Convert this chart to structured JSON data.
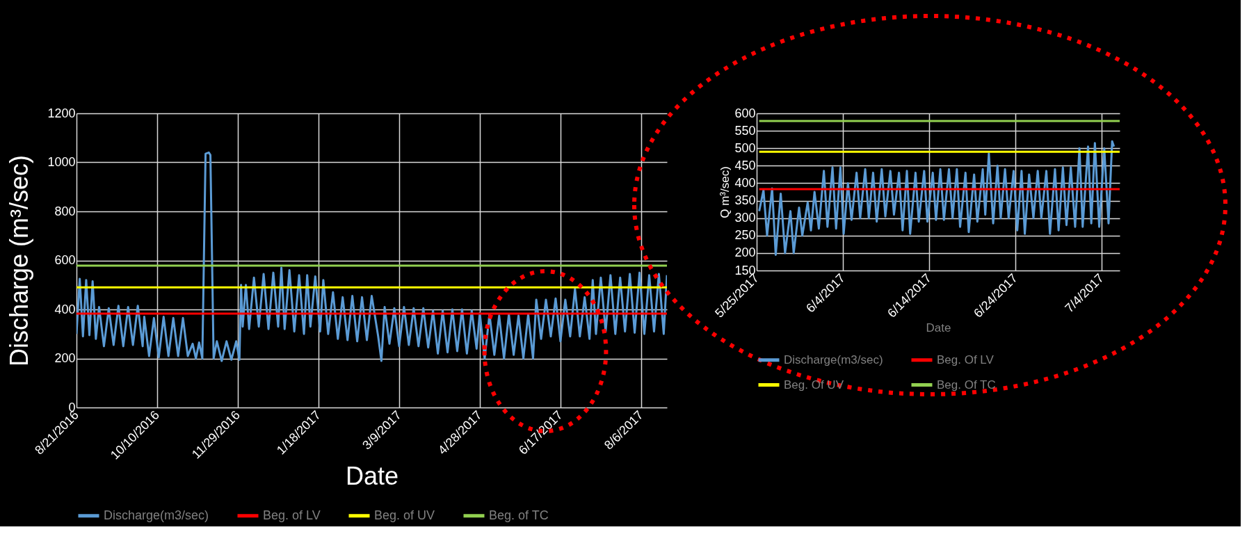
{
  "chart_data": [
    {
      "type": "line",
      "xlabel": "Date",
      "ylabel": "Discharge (m³/sec)",
      "xlim": [
        "2016-08-21",
        "2017-08-22"
      ],
      "xticks": [
        {
          "value": "2016-08-21",
          "label": "8/21/2016"
        },
        {
          "value": "2016-10-10",
          "label": "10/10/2016"
        },
        {
          "value": "2016-11-29",
          "label": "11/29/2016"
        },
        {
          "value": "2017-01-18",
          "label": "1/18/2017"
        },
        {
          "value": "2017-03-09",
          "label": "3/9/2017"
        },
        {
          "value": "2017-04-28",
          "label": "4/28/2017"
        },
        {
          "value": "2017-06-17",
          "label": "6/17/2017"
        },
        {
          "value": "2017-08-06",
          "label": "8/6/2017"
        }
      ],
      "ylim": [
        0,
        1200
      ],
      "yticks": [
        0,
        200,
        400,
        600,
        800,
        1000,
        1200
      ],
      "grid": true,
      "legend": "bottom",
      "series": [
        {
          "name": "Discharge(m3/sec)",
          "color": "#5b9bd5",
          "x": [
            "2016-08-21",
            "2016-08-23",
            "2016-08-25",
            "2016-08-27",
            "2016-08-29",
            "2016-08-31",
            "2016-09-02",
            "2016-09-04",
            "2016-09-07",
            "2016-09-10",
            "2016-09-13",
            "2016-09-16",
            "2016-09-19",
            "2016-09-22",
            "2016-09-25",
            "2016-09-28",
            "2016-10-01",
            "2016-10-02",
            "2016-10-05",
            "2016-10-08",
            "2016-10-11",
            "2016-10-14",
            "2016-10-17",
            "2016-10-20",
            "2016-10-23",
            "2016-10-26",
            "2016-10-29",
            "2016-11-01",
            "2016-11-03",
            "2016-11-05",
            "2016-11-07",
            "2016-11-09",
            "2016-11-11",
            "2016-11-12",
            "2016-11-14",
            "2016-11-16",
            "2016-11-19",
            "2016-11-22",
            "2016-11-25",
            "2016-11-28",
            "2016-11-30",
            "2016-12-01",
            "2016-12-02",
            "2016-12-04",
            "2016-12-06",
            "2016-12-09",
            "2016-12-12",
            "2016-12-15",
            "2016-12-18",
            "2016-12-21",
            "2016-12-24",
            "2016-12-26",
            "2016-12-28",
            "2016-12-31",
            "2017-01-03",
            "2017-01-06",
            "2017-01-09",
            "2017-01-11",
            "2017-01-13",
            "2017-01-16",
            "2017-01-19",
            "2017-01-21",
            "2017-01-24",
            "2017-01-27",
            "2017-01-30",
            "2017-02-02",
            "2017-02-05",
            "2017-02-08",
            "2017-02-11",
            "2017-02-14",
            "2017-02-17",
            "2017-02-20",
            "2017-02-24",
            "2017-02-26",
            "2017-02-28",
            "2017-03-03",
            "2017-03-06",
            "2017-03-09",
            "2017-03-12",
            "2017-03-15",
            "2017-03-18",
            "2017-03-21",
            "2017-03-24",
            "2017-03-27",
            "2017-03-30",
            "2017-04-02",
            "2017-04-05",
            "2017-04-08",
            "2017-04-11",
            "2017-04-14",
            "2017-04-17",
            "2017-04-20",
            "2017-04-23",
            "2017-04-26",
            "2017-04-28",
            "2017-05-01",
            "2017-05-04",
            "2017-05-07",
            "2017-05-10",
            "2017-05-13",
            "2017-05-16",
            "2017-05-19",
            "2017-05-22",
            "2017-05-25",
            "2017-05-28",
            "2017-05-31",
            "2017-06-02",
            "2017-06-05",
            "2017-06-08",
            "2017-06-11",
            "2017-06-14",
            "2017-06-17",
            "2017-06-20",
            "2017-06-23",
            "2017-06-26",
            "2017-06-29",
            "2017-07-02",
            "2017-07-05",
            "2017-07-07",
            "2017-07-09",
            "2017-07-12",
            "2017-07-15",
            "2017-07-18",
            "2017-07-21",
            "2017-07-24",
            "2017-07-27",
            "2017-07-30",
            "2017-08-02",
            "2017-08-05",
            "2017-08-08",
            "2017-08-11",
            "2017-08-14",
            "2017-08-17",
            "2017-08-20",
            "2017-08-22"
          ],
          "values": [
            300,
            525,
            290,
            520,
            295,
            515,
            280,
            410,
            250,
            405,
            255,
            415,
            250,
            410,
            255,
            415,
            250,
            370,
            210,
            365,
            205,
            370,
            210,
            365,
            210,
            365,
            210,
            260,
            200,
            265,
            200,
            1035,
            1040,
            1030,
            200,
            270,
            190,
            270,
            195,
            270,
            195,
            500,
            330,
            500,
            320,
            530,
            330,
            545,
            320,
            550,
            330,
            570,
            320,
            560,
            310,
            540,
            300,
            540,
            330,
            535,
            310,
            520,
            300,
            470,
            280,
            450,
            275,
            455,
            270,
            450,
            275,
            455,
            290,
            190,
            410,
            260,
            405,
            250,
            410,
            255,
            405,
            250,
            405,
            245,
            395,
            220,
            395,
            225,
            400,
            230,
            400,
            220,
            395,
            240,
            385,
            200,
            380,
            215,
            375,
            200,
            380,
            215,
            375,
            200,
            380,
            200,
            440,
            280,
            440,
            290,
            445,
            270,
            440,
            290,
            485,
            290,
            450,
            280,
            520,
            300,
            530,
            310,
            540,
            300,
            530,
            310,
            545,
            305,
            550,
            300,
            540,
            310,
            545,
            300,
            540
          ]
        },
        {
          "name": "Beg. of LV",
          "color": "#ff0000",
          "x": [
            "2016-08-21",
            "2017-08-22"
          ],
          "values": [
            383,
            383
          ]
        },
        {
          "name": "Beg. of UV",
          "color": "#ffff00",
          "x": [
            "2016-08-21",
            "2017-08-22"
          ],
          "values": [
            490,
            490
          ]
        },
        {
          "name": "Beg. of TC",
          "color": "#92d050",
          "x": [
            "2016-08-21",
            "2017-08-22"
          ],
          "values": [
            579,
            579
          ]
        }
      ]
    },
    {
      "type": "line",
      "xlabel": "Date",
      "ylabel": "Q m³/sec)",
      "xlim": [
        "2017-05-25",
        "2017-07-06T02:00"
      ],
      "xticks": [
        {
          "value": "2017-05-25",
          "label": "5/25/2017"
        },
        {
          "value": "2017-06-04",
          "label": "6/4/2017"
        },
        {
          "value": "2017-06-14",
          "label": "6/14/2017"
        },
        {
          "value": "2017-06-24",
          "label": "6/24/2017"
        },
        {
          "value": "2017-07-04",
          "label": "7/4/2017"
        }
      ],
      "ylim": [
        150,
        600
      ],
      "yticks": [
        150,
        200,
        250,
        300,
        350,
        400,
        450,
        500,
        550,
        600
      ],
      "grid": true,
      "legend": "bottom",
      "series": [
        {
          "name": "Discharge(m3/sec)",
          "color": "#5b9bd5",
          "x": [
            "2017-05-25T07:00",
            "2017-05-25T19:00",
            "2017-05-26T05:00",
            "2017-05-26T19:00",
            "2017-05-27T05:00",
            "2017-05-27T19:00",
            "2017-05-28T07:00",
            "2017-05-28T22:00",
            "2017-05-29T07:00",
            "2017-05-29T22:00",
            "2017-05-30T07:00",
            "2017-05-30T22:00",
            "2017-05-31T07:00",
            "2017-05-31T17:00",
            "2017-06-01T05:00",
            "2017-06-01T19:00",
            "2017-06-02T05:00",
            "2017-06-02T19:00",
            "2017-06-03T05:00",
            "2017-06-03T17:00",
            "2017-06-04T02:00",
            "2017-06-04T14:00",
            "2017-06-05T00:00",
            "2017-06-05T14:00",
            "2017-06-06T00:00",
            "2017-06-06T14:00",
            "2017-06-07T00:00",
            "2017-06-07T12:00",
            "2017-06-07T22:00",
            "2017-06-08T12:00",
            "2017-06-08T22:00",
            "2017-06-09T12:00",
            "2017-06-09T22:00",
            "2017-06-10T12:00",
            "2017-06-10T22:00",
            "2017-06-11T10:00",
            "2017-06-11T19:00",
            "2017-06-12T10:00",
            "2017-06-12T19:00",
            "2017-06-13T10:00",
            "2017-06-13T19:00",
            "2017-06-14T10:00",
            "2017-06-14T19:00",
            "2017-06-15T07:00",
            "2017-06-15T17:00",
            "2017-06-16T07:00",
            "2017-06-16T17:00",
            "2017-06-17T05:00",
            "2017-06-17T14:00",
            "2017-06-18T05:00",
            "2017-06-18T14:00",
            "2017-06-19T05:00",
            "2017-06-19T14:00",
            "2017-06-20T05:00",
            "2017-06-20T12:00",
            "2017-06-20T22:00",
            "2017-06-21T10:00",
            "2017-06-21T22:00",
            "2017-06-22T07:00",
            "2017-06-22T19:00",
            "2017-06-23T05:00",
            "2017-06-23T19:00",
            "2017-06-24T05:00",
            "2017-06-24T17:00",
            "2017-06-25T02:00",
            "2017-06-25T14:00",
            "2017-06-26T02:00",
            "2017-06-26T14:00",
            "2017-06-27T00:00",
            "2017-06-27T14:00",
            "2017-06-28T00:00",
            "2017-06-28T14:00",
            "2017-06-29T00:00",
            "2017-06-29T12:00",
            "2017-06-29T22:00",
            "2017-06-30T10:00",
            "2017-06-30T22:00",
            "2017-07-01T10:00",
            "2017-07-01T19:00",
            "2017-07-02T10:00",
            "2017-07-02T19:00",
            "2017-07-03T05:00",
            "2017-07-03T17:00",
            "2017-07-04T07:00",
            "2017-07-04T19:00",
            "2017-07-05T05:00",
            "2017-07-05T10:00"
          ],
          "values": [
            320,
            380,
            250,
            385,
            195,
            370,
            200,
            320,
            200,
            330,
            250,
            345,
            265,
            375,
            270,
            435,
            275,
            445,
            270,
            445,
            255,
            400,
            295,
            430,
            300,
            440,
            300,
            430,
            290,
            440,
            305,
            435,
            310,
            430,
            265,
            435,
            255,
            430,
            290,
            435,
            290,
            430,
            295,
            440,
            295,
            440,
            300,
            440,
            275,
            430,
            260,
            425,
            290,
            440,
            310,
            485,
            285,
            450,
            300,
            440,
            300,
            435,
            265,
            435,
            255,
            425,
            300,
            435,
            300,
            435,
            255,
            440,
            265,
            445,
            280,
            445,
            275,
            500,
            275,
            505,
            285,
            515,
            275,
            500,
            285,
            520,
            505
          ]
        },
        {
          "name": "Beg. Of LV",
          "color": "#ff0000",
          "x": [
            "2017-05-25T07:00",
            "2017-07-06T02:00"
          ],
          "values": [
            383,
            383
          ]
        },
        {
          "name": "Beg. Of UV",
          "color": "#ffff00",
          "x": [
            "2017-05-25T07:00",
            "2017-07-06T02:00"
          ],
          "values": [
            490,
            490
          ]
        },
        {
          "name": "Beg. Of TC",
          "color": "#92d050",
          "x": [
            "2017-05-25T07:00",
            "2017-07-06T02:00"
          ],
          "values": [
            578,
            578
          ]
        }
      ]
    }
  ]
}
